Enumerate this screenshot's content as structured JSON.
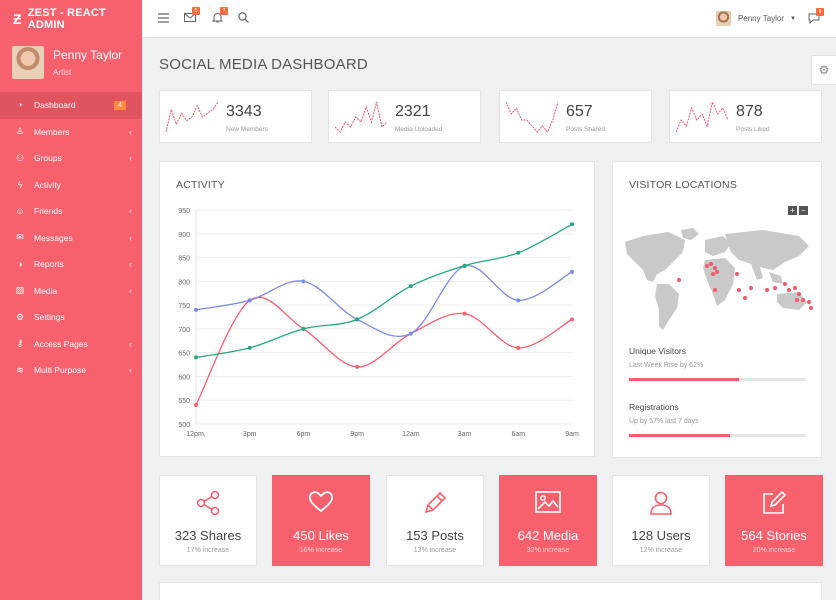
{
  "app": {
    "brand": "ZEST - REACT ADMIN"
  },
  "profile": {
    "name": "Penny Taylor",
    "role": "Artist"
  },
  "nav": [
    {
      "label": "Dashboard",
      "icon": "gauge-icon",
      "badge": "4",
      "active": true
    },
    {
      "label": "Members",
      "icon": "user-icon",
      "chevron": "‹"
    },
    {
      "label": "Groups",
      "icon": "users-icon",
      "chevron": "‹"
    },
    {
      "label": "Activity",
      "icon": "bolt-icon"
    },
    {
      "label": "Friends",
      "icon": "smile-icon",
      "chevron": "‹"
    },
    {
      "label": "Messages",
      "icon": "envelope-icon",
      "chevron": "‹"
    },
    {
      "label": "Reports",
      "icon": "chart-pie-icon",
      "chevron": "‹"
    },
    {
      "label": "Media",
      "icon": "image-icon",
      "chevron": "‹"
    },
    {
      "label": "Settings",
      "icon": "gear-icon"
    },
    {
      "label": "Access Pages",
      "icon": "key-icon",
      "chevron": "‹"
    },
    {
      "label": "Multi Purpose",
      "icon": "layers-icon",
      "chevron": "‹"
    }
  ],
  "topbar": {
    "mail_badge": "5",
    "bell_badge": "7",
    "chat_badge": "9",
    "user_name": "Penny Taylor"
  },
  "page": {
    "title": "SOCIAL MEDIA DASHBOARD"
  },
  "stats": [
    {
      "value": "3343",
      "label": "New Members",
      "spark": [
        2,
        8,
        4,
        7,
        5,
        6,
        9,
        6,
        7,
        8,
        10
      ]
    },
    {
      "value": "2321",
      "label": "Media Uploaded",
      "spark": [
        4,
        3,
        5,
        4,
        6,
        5,
        8,
        5,
        9,
        4,
        5
      ]
    },
    {
      "value": "657",
      "label": "Posts Shared",
      "spark": [
        8,
        6,
        7,
        5,
        5,
        4,
        3,
        4,
        3,
        5,
        8
      ]
    },
    {
      "value": "878",
      "label": "Posts Liked",
      "spark": [
        3,
        5,
        4,
        7,
        5,
        6,
        4,
        8,
        6,
        7,
        5
      ]
    }
  ],
  "activity": {
    "title": "ACTIVITY",
    "chart_data": {
      "type": "line",
      "categories": [
        "12pm,",
        "3pm",
        "6pm",
        "9pm",
        "12am",
        "3am",
        "6am",
        "9am"
      ],
      "ylim": [
        500,
        950
      ],
      "yticks": [
        500,
        550,
        600,
        650,
        700,
        750,
        800,
        850,
        900,
        950
      ],
      "grid": true,
      "series": [
        {
          "color": "#f7606d",
          "values": [
            540,
            760,
            700,
            620,
            690,
            732,
            660,
            720
          ]
        },
        {
          "color": "#7b8ae8",
          "values": [
            740,
            760,
            800,
            720,
            690,
            832,
            760,
            820
          ]
        },
        {
          "color": "#28a87a",
          "values": [
            640,
            660,
            700,
            720,
            790,
            833,
            860,
            920
          ]
        }
      ]
    }
  },
  "visitors": {
    "title": "VISITOR LOCATIONS",
    "zoom_in": "+",
    "zoom_out": "−",
    "progress": [
      {
        "label": "Unique Visitors",
        "sub": "Last Week Rise by 62%",
        "value": 0.62
      },
      {
        "label": "Registrations",
        "sub": "Up by 57% last 7 days",
        "value": 0.57
      }
    ]
  },
  "social": [
    {
      "value": "323 Shares",
      "sub": "17% increase",
      "icon": "share-icon",
      "pink": false
    },
    {
      "value": "450 Likes",
      "sub": "16% increase",
      "icon": "heart-icon",
      "pink": true
    },
    {
      "value": "153 Posts",
      "sub": "13% increase",
      "icon": "pencil-icon",
      "pink": false
    },
    {
      "value": "642 Media",
      "sub": "32% increase",
      "icon": "image-icon",
      "pink": true
    },
    {
      "value": "128 Users",
      "sub": "12% increase",
      "icon": "user-icon",
      "pink": false
    },
    {
      "value": "564 Stories",
      "sub": "20% increase",
      "icon": "edit-icon",
      "pink": true
    }
  ],
  "colors": {
    "accent": "#f7606d",
    "accent_dark": "#e05460",
    "badge": "#ff8a3d"
  }
}
